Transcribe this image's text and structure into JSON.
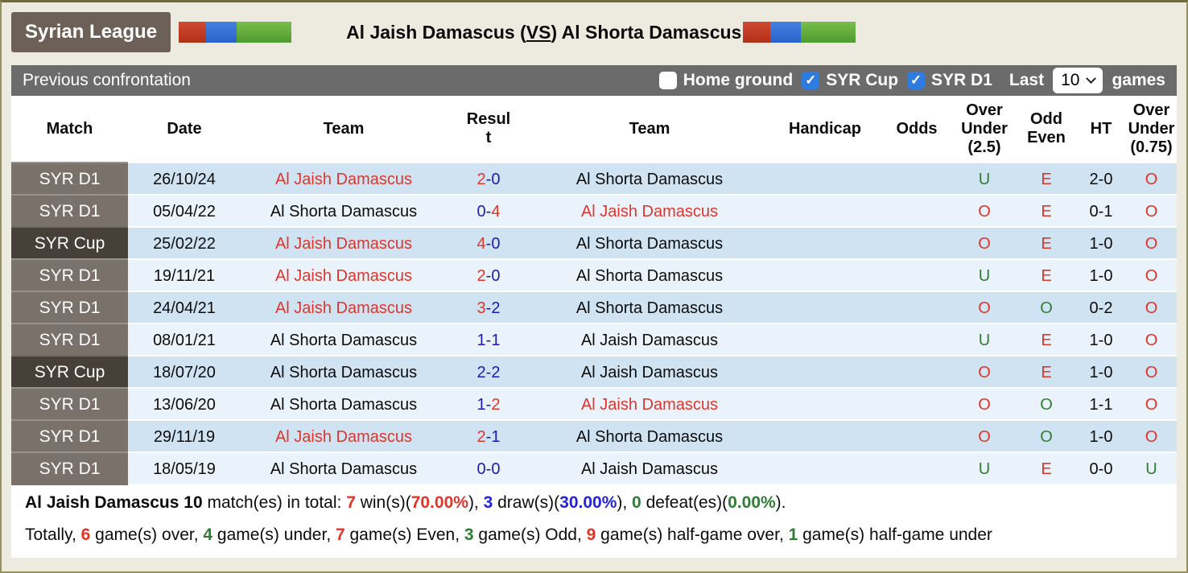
{
  "colors": {
    "team_highlight_red": "#df352a",
    "score_blue": "#1c1cae",
    "stat_blue": "#2323d7",
    "stat_green": "#2f7d33",
    "row_dark": "#cfe3f3",
    "row_light": "#eaf3fb",
    "match_d1_bg": "#7b716b",
    "match_cup_bg": "#474039",
    "badge_bg": "#6d6157",
    "toolbar_bg": "#6b6b6b",
    "checkbox_blue": "#2e7ce0",
    "flag_red": "#b23019",
    "flag_blue": "#2a62cc",
    "flag_green": "#4f9a2f",
    "page_bg": "#edebe0"
  },
  "header": {
    "badge": "Syrian League",
    "title": {
      "left": "Al Jaish Damascus (",
      "vs": "VS",
      "right": ") Al Shorta Damascus"
    }
  },
  "toolbar": {
    "title": "Previous confrontation",
    "filters": [
      {
        "label": "Home ground",
        "checked": false
      },
      {
        "label": "SYR Cup",
        "checked": true
      },
      {
        "label": "SYR D1",
        "checked": true
      }
    ],
    "last_label": "Last",
    "select_value": "10",
    "games_label": "games"
  },
  "table": {
    "headers": [
      "Match",
      "Date",
      "Team",
      "Result",
      "Team",
      "Handicap",
      "Odds",
      "Over Under (2.5)",
      "Odd Even",
      "HT",
      "Over Under (0.75)"
    ],
    "rows": [
      {
        "match": "SYR D1",
        "date": "26/10/24",
        "team1": "Al Jaish Damascus",
        "team1_color": "red",
        "score1": "2",
        "score1_color": "red",
        "score2": "0",
        "score2_color": "blue",
        "team2": "Al Shorta Damascus",
        "team2_color": "black",
        "handicap": "",
        "odds": "",
        "over_under_25": "U",
        "over_under_25_color": "green",
        "odd_even": "E",
        "odd_even_color": "red",
        "ht": "2-0",
        "over_under_075": "O",
        "over_under_075_color": "red"
      },
      {
        "match": "SYR D1",
        "date": "05/04/22",
        "team1": "Al Shorta Damascus",
        "team1_color": "black",
        "score1": "0",
        "score1_color": "blue",
        "score2": "4",
        "score2_color": "red",
        "team2": "Al Jaish Damascus",
        "team2_color": "red",
        "handicap": "",
        "odds": "",
        "over_under_25": "O",
        "over_under_25_color": "red",
        "odd_even": "E",
        "odd_even_color": "red",
        "ht": "0-1",
        "over_under_075": "O",
        "over_under_075_color": "red"
      },
      {
        "match": "SYR Cup",
        "date": "25/02/22",
        "team1": "Al Jaish Damascus",
        "team1_color": "red",
        "score1": "4",
        "score1_color": "red",
        "score2": "0",
        "score2_color": "blue",
        "team2": "Al Shorta Damascus",
        "team2_color": "black",
        "handicap": "",
        "odds": "",
        "over_under_25": "O",
        "over_under_25_color": "red",
        "odd_even": "E",
        "odd_even_color": "red",
        "ht": "1-0",
        "over_under_075": "O",
        "over_under_075_color": "red"
      },
      {
        "match": "SYR D1",
        "date": "19/11/21",
        "team1": "Al Jaish Damascus",
        "team1_color": "red",
        "score1": "2",
        "score1_color": "red",
        "score2": "0",
        "score2_color": "blue",
        "team2": "Al Shorta Damascus",
        "team2_color": "black",
        "handicap": "",
        "odds": "",
        "over_under_25": "U",
        "over_under_25_color": "green",
        "odd_even": "E",
        "odd_even_color": "red",
        "ht": "1-0",
        "over_under_075": "O",
        "over_under_075_color": "red"
      },
      {
        "match": "SYR D1",
        "date": "24/04/21",
        "team1": "Al Jaish Damascus",
        "team1_color": "red",
        "score1": "3",
        "score1_color": "red",
        "score2": "2",
        "score2_color": "blue",
        "team2": "Al Shorta Damascus",
        "team2_color": "black",
        "handicap": "",
        "odds": "",
        "over_under_25": "O",
        "over_under_25_color": "red",
        "odd_even": "O",
        "odd_even_color": "green",
        "ht": "0-2",
        "over_under_075": "O",
        "over_under_075_color": "red"
      },
      {
        "match": "SYR D1",
        "date": "08/01/21",
        "team1": "Al Shorta Damascus",
        "team1_color": "black",
        "score1": "1",
        "score1_color": "blue",
        "score2": "1",
        "score2_color": "blue",
        "team2": "Al Jaish Damascus",
        "team2_color": "black",
        "handicap": "",
        "odds": "",
        "over_under_25": "U",
        "over_under_25_color": "green",
        "odd_even": "E",
        "odd_even_color": "red",
        "ht": "1-0",
        "over_under_075": "O",
        "over_under_075_color": "red"
      },
      {
        "match": "SYR Cup",
        "date": "18/07/20",
        "team1": "Al Shorta Damascus",
        "team1_color": "black",
        "score1": "2",
        "score1_color": "blue",
        "score2": "2",
        "score2_color": "blue",
        "team2": "Al Jaish Damascus",
        "team2_color": "black",
        "handicap": "",
        "odds": "",
        "over_under_25": "O",
        "over_under_25_color": "red",
        "odd_even": "E",
        "odd_even_color": "red",
        "ht": "1-0",
        "over_under_075": "O",
        "over_under_075_color": "red"
      },
      {
        "match": "SYR D1",
        "date": "13/06/20",
        "team1": "Al Shorta Damascus",
        "team1_color": "black",
        "score1": "1",
        "score1_color": "blue",
        "score2": "2",
        "score2_color": "red",
        "team2": "Al Jaish Damascus",
        "team2_color": "red",
        "handicap": "",
        "odds": "",
        "over_under_25": "O",
        "over_under_25_color": "red",
        "odd_even": "O",
        "odd_even_color": "green",
        "ht": "1-1",
        "over_under_075": "O",
        "over_under_075_color": "red"
      },
      {
        "match": "SYR D1",
        "date": "29/11/19",
        "team1": "Al Jaish Damascus",
        "team1_color": "red",
        "score1": "2",
        "score1_color": "red",
        "score2": "1",
        "score2_color": "blue",
        "team2": "Al Shorta Damascus",
        "team2_color": "black",
        "handicap": "",
        "odds": "",
        "over_under_25": "O",
        "over_under_25_color": "red",
        "odd_even": "O",
        "odd_even_color": "green",
        "ht": "1-0",
        "over_under_075": "O",
        "over_under_075_color": "red"
      },
      {
        "match": "SYR D1",
        "date": "18/05/19",
        "team1": "Al Shorta Damascus",
        "team1_color": "black",
        "score1": "0",
        "score1_color": "blue",
        "score2": "0",
        "score2_color": "blue",
        "team2": "Al Jaish Damascus",
        "team2_color": "black",
        "handicap": "",
        "odds": "",
        "over_under_25": "U",
        "over_under_25_color": "green",
        "odd_even": "E",
        "odd_even_color": "red",
        "ht": "0-0",
        "over_under_075": "U",
        "over_under_075_color": "green"
      }
    ]
  },
  "summary": {
    "line1": [
      {
        "text": "Al Jaish Damascus 10",
        "bold": true,
        "color": "black"
      },
      {
        "text": " match(es) in total: ",
        "color": "black"
      },
      {
        "text": "7",
        "bold": true,
        "color": "red"
      },
      {
        "text": " win(s)(",
        "color": "black"
      },
      {
        "text": "70.00%",
        "bold": true,
        "color": "red"
      },
      {
        "text": "), ",
        "color": "black"
      },
      {
        "text": "3",
        "bold": true,
        "color": "blue"
      },
      {
        "text": " draw(s)(",
        "color": "black"
      },
      {
        "text": "30.00%",
        "bold": true,
        "color": "blue"
      },
      {
        "text": "), ",
        "color": "black"
      },
      {
        "text": "0",
        "bold": true,
        "color": "green"
      },
      {
        "text": " defeat(es)(",
        "color": "black"
      },
      {
        "text": "0.00%",
        "bold": true,
        "color": "green"
      },
      {
        "text": ").",
        "color": "black"
      }
    ],
    "line2": [
      {
        "text": "Totally, ",
        "color": "black"
      },
      {
        "text": "6",
        "bold": true,
        "color": "red"
      },
      {
        "text": " game(s) over, ",
        "color": "black"
      },
      {
        "text": "4",
        "bold": true,
        "color": "green"
      },
      {
        "text": " game(s) under, ",
        "color": "black"
      },
      {
        "text": "7",
        "bold": true,
        "color": "red"
      },
      {
        "text": " game(s) Even, ",
        "color": "black"
      },
      {
        "text": "3",
        "bold": true,
        "color": "green"
      },
      {
        "text": " game(s) Odd, ",
        "color": "black"
      },
      {
        "text": "9",
        "bold": true,
        "color": "red"
      },
      {
        "text": " game(s) half-game over, ",
        "color": "black"
      },
      {
        "text": "1",
        "bold": true,
        "color": "green"
      },
      {
        "text": " game(s) half-game under",
        "color": "black"
      }
    ]
  }
}
